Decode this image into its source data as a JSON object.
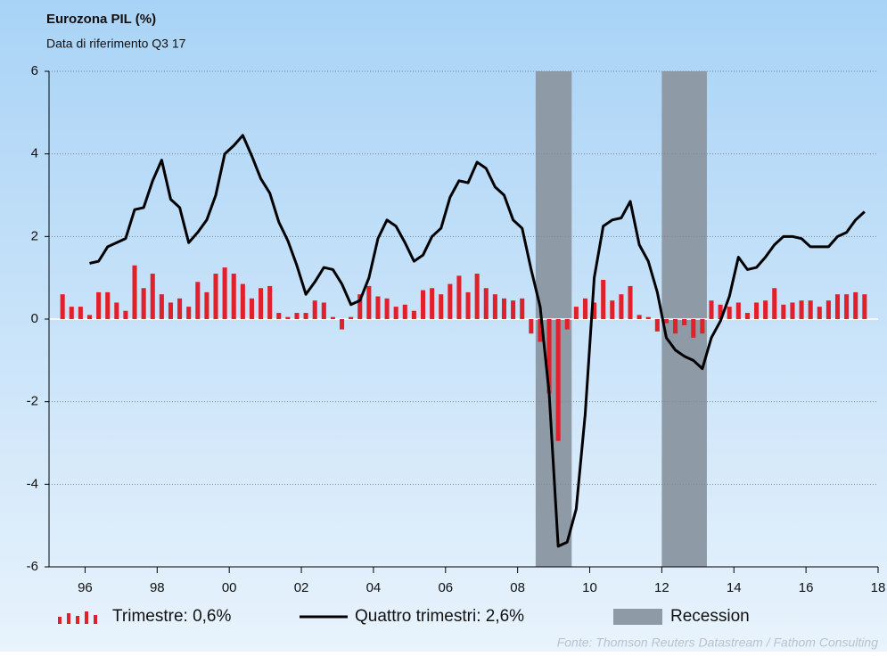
{
  "chart_data": {
    "type": "bar_line",
    "title": "Eurozona PIL (%)",
    "subtitle": "Data di riferimento Q3 17",
    "source": "Fonte: Thomson Reuters Datastream / Fathom Consulting",
    "xlim": [
      1995,
      2018
    ],
    "xticks": [
      {
        "value": 1996,
        "label": "96"
      },
      {
        "value": 1998,
        "label": "98"
      },
      {
        "value": 2000,
        "label": "00"
      },
      {
        "value": 2002,
        "label": "02"
      },
      {
        "value": 2004,
        "label": "04"
      },
      {
        "value": 2006,
        "label": "06"
      },
      {
        "value": 2008,
        "label": "08"
      },
      {
        "value": 2010,
        "label": "10"
      },
      {
        "value": 2012,
        "label": "12"
      },
      {
        "value": 2014,
        "label": "14"
      },
      {
        "value": 2016,
        "label": "16"
      },
      {
        "value": 2018,
        "label": "18"
      }
    ],
    "ylim": [
      -6,
      6
    ],
    "yticks": [
      -6,
      -4,
      -2,
      0,
      2,
      4,
      6
    ],
    "grid": true,
    "shaded_regions": {
      "name": "Recession",
      "color": "#8e9aa6",
      "ranges": [
        [
          2008.5,
          2009.5
        ],
        [
          2012,
          2013.25
        ]
      ]
    },
    "series": [
      {
        "name": "Trimestre: 0,6%",
        "type": "bar",
        "color": "#e0202a",
        "x": [
          1995.375,
          1995.625,
          1995.875,
          1996.125,
          1996.375,
          1996.625,
          1996.875,
          1997.125,
          1997.375,
          1997.625,
          1997.875,
          1998.125,
          1998.375,
          1998.625,
          1998.875,
          1999.125,
          1999.375,
          1999.625,
          1999.875,
          2000.125,
          2000.375,
          2000.625,
          2000.875,
          2001.125,
          2001.375,
          2001.625,
          2001.875,
          2002.125,
          2002.375,
          2002.625,
          2002.875,
          2003.125,
          2003.375,
          2003.625,
          2003.875,
          2004.125,
          2004.375,
          2004.625,
          2004.875,
          2005.125,
          2005.375,
          2005.625,
          2005.875,
          2006.125,
          2006.375,
          2006.625,
          2006.875,
          2007.125,
          2007.375,
          2007.625,
          2007.875,
          2008.125,
          2008.375,
          2008.625,
          2008.875,
          2009.125,
          2009.375,
          2009.625,
          2009.875,
          2010.125,
          2010.375,
          2010.625,
          2010.875,
          2011.125,
          2011.375,
          2011.625,
          2011.875,
          2012.125,
          2012.375,
          2012.625,
          2012.875,
          2013.125,
          2013.375,
          2013.625,
          2013.875,
          2014.125,
          2014.375,
          2014.625,
          2014.875,
          2015.125,
          2015.375,
          2015.625,
          2015.875,
          2016.125,
          2016.375,
          2016.625,
          2016.875,
          2017.125,
          2017.375,
          2017.625
        ],
        "values": [
          0.6,
          0.3,
          0.3,
          0.1,
          0.65,
          0.65,
          0.4,
          0.2,
          1.3,
          0.75,
          1.1,
          0.6,
          0.4,
          0.5,
          0.3,
          0.9,
          0.65,
          1.1,
          1.25,
          1.1,
          0.85,
          0.5,
          0.75,
          0.8,
          0.15,
          0.05,
          0.15,
          0.15,
          0.45,
          0.4,
          0.05,
          -0.25,
          0.05,
          0.6,
          0.8,
          0.55,
          0.5,
          0.3,
          0.35,
          0.2,
          0.7,
          0.75,
          0.6,
          0.85,
          1.05,
          0.65,
          1.1,
          0.75,
          0.6,
          0.5,
          0.45,
          0.5,
          -0.35,
          -0.55,
          -1.8,
          -2.95,
          -0.25,
          0.3,
          0.5,
          0.4,
          0.95,
          0.45,
          0.6,
          0.8,
          0.1,
          0.05,
          -0.3,
          -0.1,
          -0.35,
          -0.15,
          -0.45,
          -0.35,
          0.45,
          0.35,
          0.3,
          0.4,
          0.15,
          0.4,
          0.45,
          0.75,
          0.35,
          0.4,
          0.45,
          0.45,
          0.3,
          0.45,
          0.6,
          0.6,
          0.65,
          0.6
        ]
      },
      {
        "name": "Quattro trimestri: 2,6%",
        "type": "line",
        "color": "#000000",
        "x": [
          1996.125,
          1996.375,
          1996.625,
          1996.875,
          1997.125,
          1997.375,
          1997.625,
          1997.875,
          1998.125,
          1998.375,
          1998.625,
          1998.875,
          1999.125,
          1999.375,
          1999.625,
          1999.875,
          2000.125,
          2000.375,
          2000.625,
          2000.875,
          2001.125,
          2001.375,
          2001.625,
          2001.875,
          2002.125,
          2002.375,
          2002.625,
          2002.875,
          2003.125,
          2003.375,
          2003.625,
          2003.875,
          2004.125,
          2004.375,
          2004.625,
          2004.875,
          2005.125,
          2005.375,
          2005.625,
          2005.875,
          2006.125,
          2006.375,
          2006.625,
          2006.875,
          2007.125,
          2007.375,
          2007.625,
          2007.875,
          2008.125,
          2008.375,
          2008.625,
          2008.875,
          2009.125,
          2009.375,
          2009.625,
          2009.875,
          2010.125,
          2010.375,
          2010.625,
          2010.875,
          2011.125,
          2011.375,
          2011.625,
          2011.875,
          2012.125,
          2012.375,
          2012.625,
          2012.875,
          2013.125,
          2013.375,
          2013.625,
          2013.875,
          2014.125,
          2014.375,
          2014.625,
          2014.875,
          2015.125,
          2015.375,
          2015.625,
          2015.875,
          2016.125,
          2016.375,
          2016.625,
          2016.875,
          2017.125,
          2017.375,
          2017.625
        ],
        "values": [
          1.35,
          1.4,
          1.75,
          1.85,
          1.95,
          2.65,
          2.7,
          3.35,
          3.85,
          2.9,
          2.7,
          1.85,
          2.1,
          2.4,
          3.0,
          4.0,
          4.2,
          4.45,
          3.95,
          3.4,
          3.05,
          2.35,
          1.9,
          1.3,
          0.6,
          0.9,
          1.25,
          1.2,
          0.85,
          0.35,
          0.45,
          1.0,
          1.95,
          2.4,
          2.25,
          1.85,
          1.4,
          1.55,
          2.0,
          2.2,
          2.95,
          3.35,
          3.3,
          3.8,
          3.65,
          3.2,
          3.0,
          2.4,
          2.2,
          1.2,
          0.3,
          -1.8,
          -5.5,
          -5.4,
          -4.6,
          -2.3,
          1.0,
          2.25,
          2.4,
          2.45,
          2.85,
          1.8,
          1.4,
          0.65,
          -0.45,
          -0.75,
          -0.9,
          -1.0,
          -1.2,
          -0.45,
          -0.05,
          0.55,
          1.5,
          1.2,
          1.25,
          1.5,
          1.8,
          2.0,
          2.0,
          1.95,
          1.75,
          1.75,
          1.75,
          2.0,
          2.1,
          2.4,
          2.6
        ]
      }
    ]
  }
}
